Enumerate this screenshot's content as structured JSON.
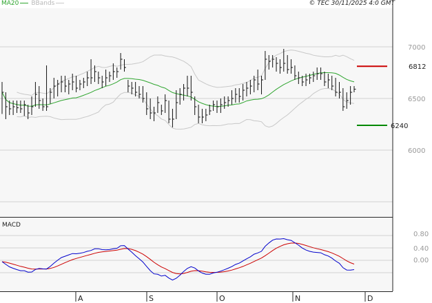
{
  "legend": {
    "ma_label": "MA20",
    "bbands_label": "BBands"
  },
  "copyright": "© TEC 30/11/2025 4:0 GMT",
  "macd_panel": {
    "label": "MACD"
  },
  "markers": {
    "resistance": "6812",
    "support": "6240",
    "resistance_color": "#cc0000",
    "support_color": "#008800"
  },
  "colors": {
    "ma20": "#2fa52f",
    "bbands": "#c8c8c8",
    "bars": "#111111",
    "macd": "#0000cc",
    "signal": "#cc0000",
    "grid": "#d0d0d0",
    "panel_bg": "#f7f7f7"
  },
  "chart_data": [
    {
      "type": "ohlc",
      "series": [
        {
          "name": "MA20",
          "kind": "moving-average"
        },
        {
          "name": "BBands",
          "kind": "bollinger-bands"
        }
      ],
      "y_ticks": [
        6000,
        6500,
        7000
      ],
      "y_tick_labels": [
        "6000",
        "6500",
        "7000"
      ],
      "ylim": [
        5500,
        7050
      ],
      "x_labels": [
        "A",
        "S",
        "O",
        "N",
        "D"
      ],
      "grid": "horizontal",
      "bars": [
        {
          "h": 6660,
          "l": 6350,
          "c": 6560
        },
        {
          "h": 6560,
          "l": 6300,
          "c": 6420
        },
        {
          "h": 6480,
          "l": 6340,
          "c": 6400
        },
        {
          "h": 6480,
          "l": 6340,
          "c": 6420
        },
        {
          "h": 6480,
          "l": 6360,
          "c": 6410
        },
        {
          "h": 6480,
          "l": 6360,
          "c": 6400
        },
        {
          "h": 6480,
          "l": 6330,
          "c": 6440
        },
        {
          "h": 6440,
          "l": 6300,
          "c": 6360
        },
        {
          "h": 6520,
          "l": 6340,
          "c": 6420
        },
        {
          "h": 6660,
          "l": 6420,
          "c": 6540
        },
        {
          "h": 6620,
          "l": 6400,
          "c": 6480
        },
        {
          "h": 6500,
          "l": 6380,
          "c": 6420
        },
        {
          "h": 6820,
          "l": 6380,
          "c": 6420
        },
        {
          "h": 6600,
          "l": 6450,
          "c": 6560
        },
        {
          "h": 6700,
          "l": 6500,
          "c": 6620
        },
        {
          "h": 6680,
          "l": 6520,
          "c": 6640
        },
        {
          "h": 6720,
          "l": 6560,
          "c": 6660
        },
        {
          "h": 6720,
          "l": 6560,
          "c": 6620
        },
        {
          "h": 6680,
          "l": 6540,
          "c": 6640
        },
        {
          "h": 6740,
          "l": 6580,
          "c": 6660
        },
        {
          "h": 6720,
          "l": 6560,
          "c": 6600
        },
        {
          "h": 6680,
          "l": 6580,
          "c": 6640
        },
        {
          "h": 6700,
          "l": 6600,
          "c": 6660
        },
        {
          "h": 6760,
          "l": 6620,
          "c": 6700
        },
        {
          "h": 6880,
          "l": 6640,
          "c": 6700
        },
        {
          "h": 6820,
          "l": 6660,
          "c": 6760
        },
        {
          "h": 6760,
          "l": 6640,
          "c": 6700
        },
        {
          "h": 6720,
          "l": 6600,
          "c": 6660
        },
        {
          "h": 6780,
          "l": 6620,
          "c": 6700
        },
        {
          "h": 6760,
          "l": 6660,
          "c": 6720
        },
        {
          "h": 6840,
          "l": 6680,
          "c": 6760
        },
        {
          "h": 6800,
          "l": 6700,
          "c": 6760
        },
        {
          "h": 6940,
          "l": 6780,
          "c": 6880
        },
        {
          "h": 6880,
          "l": 6760,
          "c": 6800
        },
        {
          "h": 6680,
          "l": 6560,
          "c": 6620
        },
        {
          "h": 6660,
          "l": 6540,
          "c": 6600
        },
        {
          "h": 6660,
          "l": 6520,
          "c": 6560
        },
        {
          "h": 6620,
          "l": 6500,
          "c": 6540
        },
        {
          "h": 6620,
          "l": 6460,
          "c": 6500
        },
        {
          "h": 6560,
          "l": 6340,
          "c": 6400
        },
        {
          "h": 6500,
          "l": 6300,
          "c": 6360
        },
        {
          "h": 6420,
          "l": 6280,
          "c": 6360
        },
        {
          "h": 6520,
          "l": 6360,
          "c": 6460
        },
        {
          "h": 6440,
          "l": 6340,
          "c": 6380
        },
        {
          "h": 6540,
          "l": 6360,
          "c": 6480
        },
        {
          "h": 6480,
          "l": 6260,
          "c": 6300
        },
        {
          "h": 6400,
          "l": 6220,
          "c": 6300
        },
        {
          "h": 6580,
          "l": 6300,
          "c": 6460
        },
        {
          "h": 6600,
          "l": 6440,
          "c": 6540
        },
        {
          "h": 6640,
          "l": 6480,
          "c": 6600
        },
        {
          "h": 6720,
          "l": 6520,
          "c": 6600
        },
        {
          "h": 6720,
          "l": 6480,
          "c": 6560
        },
        {
          "h": 6520,
          "l": 6340,
          "c": 6420
        },
        {
          "h": 6440,
          "l": 6260,
          "c": 6320
        },
        {
          "h": 6400,
          "l": 6260,
          "c": 6320
        },
        {
          "h": 6400,
          "l": 6280,
          "c": 6340
        },
        {
          "h": 6440,
          "l": 6340,
          "c": 6380
        },
        {
          "h": 6480,
          "l": 6380,
          "c": 6440
        },
        {
          "h": 6480,
          "l": 6360,
          "c": 6420
        },
        {
          "h": 6500,
          "l": 6360,
          "c": 6440
        },
        {
          "h": 6520,
          "l": 6400,
          "c": 6460
        },
        {
          "h": 6520,
          "l": 6420,
          "c": 6480
        },
        {
          "h": 6580,
          "l": 6440,
          "c": 6500
        },
        {
          "h": 6600,
          "l": 6460,
          "c": 6540
        },
        {
          "h": 6600,
          "l": 6460,
          "c": 6520
        },
        {
          "h": 6640,
          "l": 6480,
          "c": 6580
        },
        {
          "h": 6660,
          "l": 6520,
          "c": 6600
        },
        {
          "h": 6680,
          "l": 6540,
          "c": 6620
        },
        {
          "h": 6720,
          "l": 6560,
          "c": 6680
        },
        {
          "h": 6780,
          "l": 6580,
          "c": 6640
        },
        {
          "h": 6720,
          "l": 6540,
          "c": 6680
        },
        {
          "h": 6960,
          "l": 6680,
          "c": 6880
        },
        {
          "h": 6920,
          "l": 6780,
          "c": 6860
        },
        {
          "h": 6920,
          "l": 6800,
          "c": 6880
        },
        {
          "h": 6900,
          "l": 6760,
          "c": 6840
        },
        {
          "h": 6880,
          "l": 6740,
          "c": 6800
        },
        {
          "h": 6980,
          "l": 6760,
          "c": 6840
        },
        {
          "h": 6920,
          "l": 6740,
          "c": 6780
        },
        {
          "h": 6880,
          "l": 6740,
          "c": 6800
        },
        {
          "h": 6820,
          "l": 6680,
          "c": 6720
        },
        {
          "h": 6760,
          "l": 6640,
          "c": 6700
        },
        {
          "h": 6720,
          "l": 6620,
          "c": 6660
        },
        {
          "h": 6740,
          "l": 6620,
          "c": 6680
        },
        {
          "h": 6740,
          "l": 6640,
          "c": 6700
        },
        {
          "h": 6760,
          "l": 6660,
          "c": 6720
        },
        {
          "h": 6800,
          "l": 6680,
          "c": 6740
        },
        {
          "h": 6800,
          "l": 6680,
          "c": 6740
        },
        {
          "h": 6760,
          "l": 6620,
          "c": 6660
        },
        {
          "h": 6740,
          "l": 6600,
          "c": 6680
        },
        {
          "h": 6720,
          "l": 6580,
          "c": 6620
        },
        {
          "h": 6700,
          "l": 6520,
          "c": 6560
        },
        {
          "h": 6660,
          "l": 6500,
          "c": 6560
        },
        {
          "h": 6600,
          "l": 6380,
          "c": 6420
        },
        {
          "h": 6560,
          "l": 6400,
          "c": 6480
        },
        {
          "h": 6620,
          "l": 6440,
          "c": 6560
        },
        {
          "h": 6620,
          "l": 6560,
          "c": 6590
        }
      ]
    },
    {
      "type": "line",
      "title": "MACD",
      "series": [
        {
          "name": "MACD",
          "color": "#0000cc"
        },
        {
          "name": "Signal",
          "color": "#cc0000"
        }
      ],
      "y_tick_labels": [
        "0.80",
        "0.40",
        "0.00"
      ],
      "ylim": [
        -30,
        55
      ]
    }
  ]
}
